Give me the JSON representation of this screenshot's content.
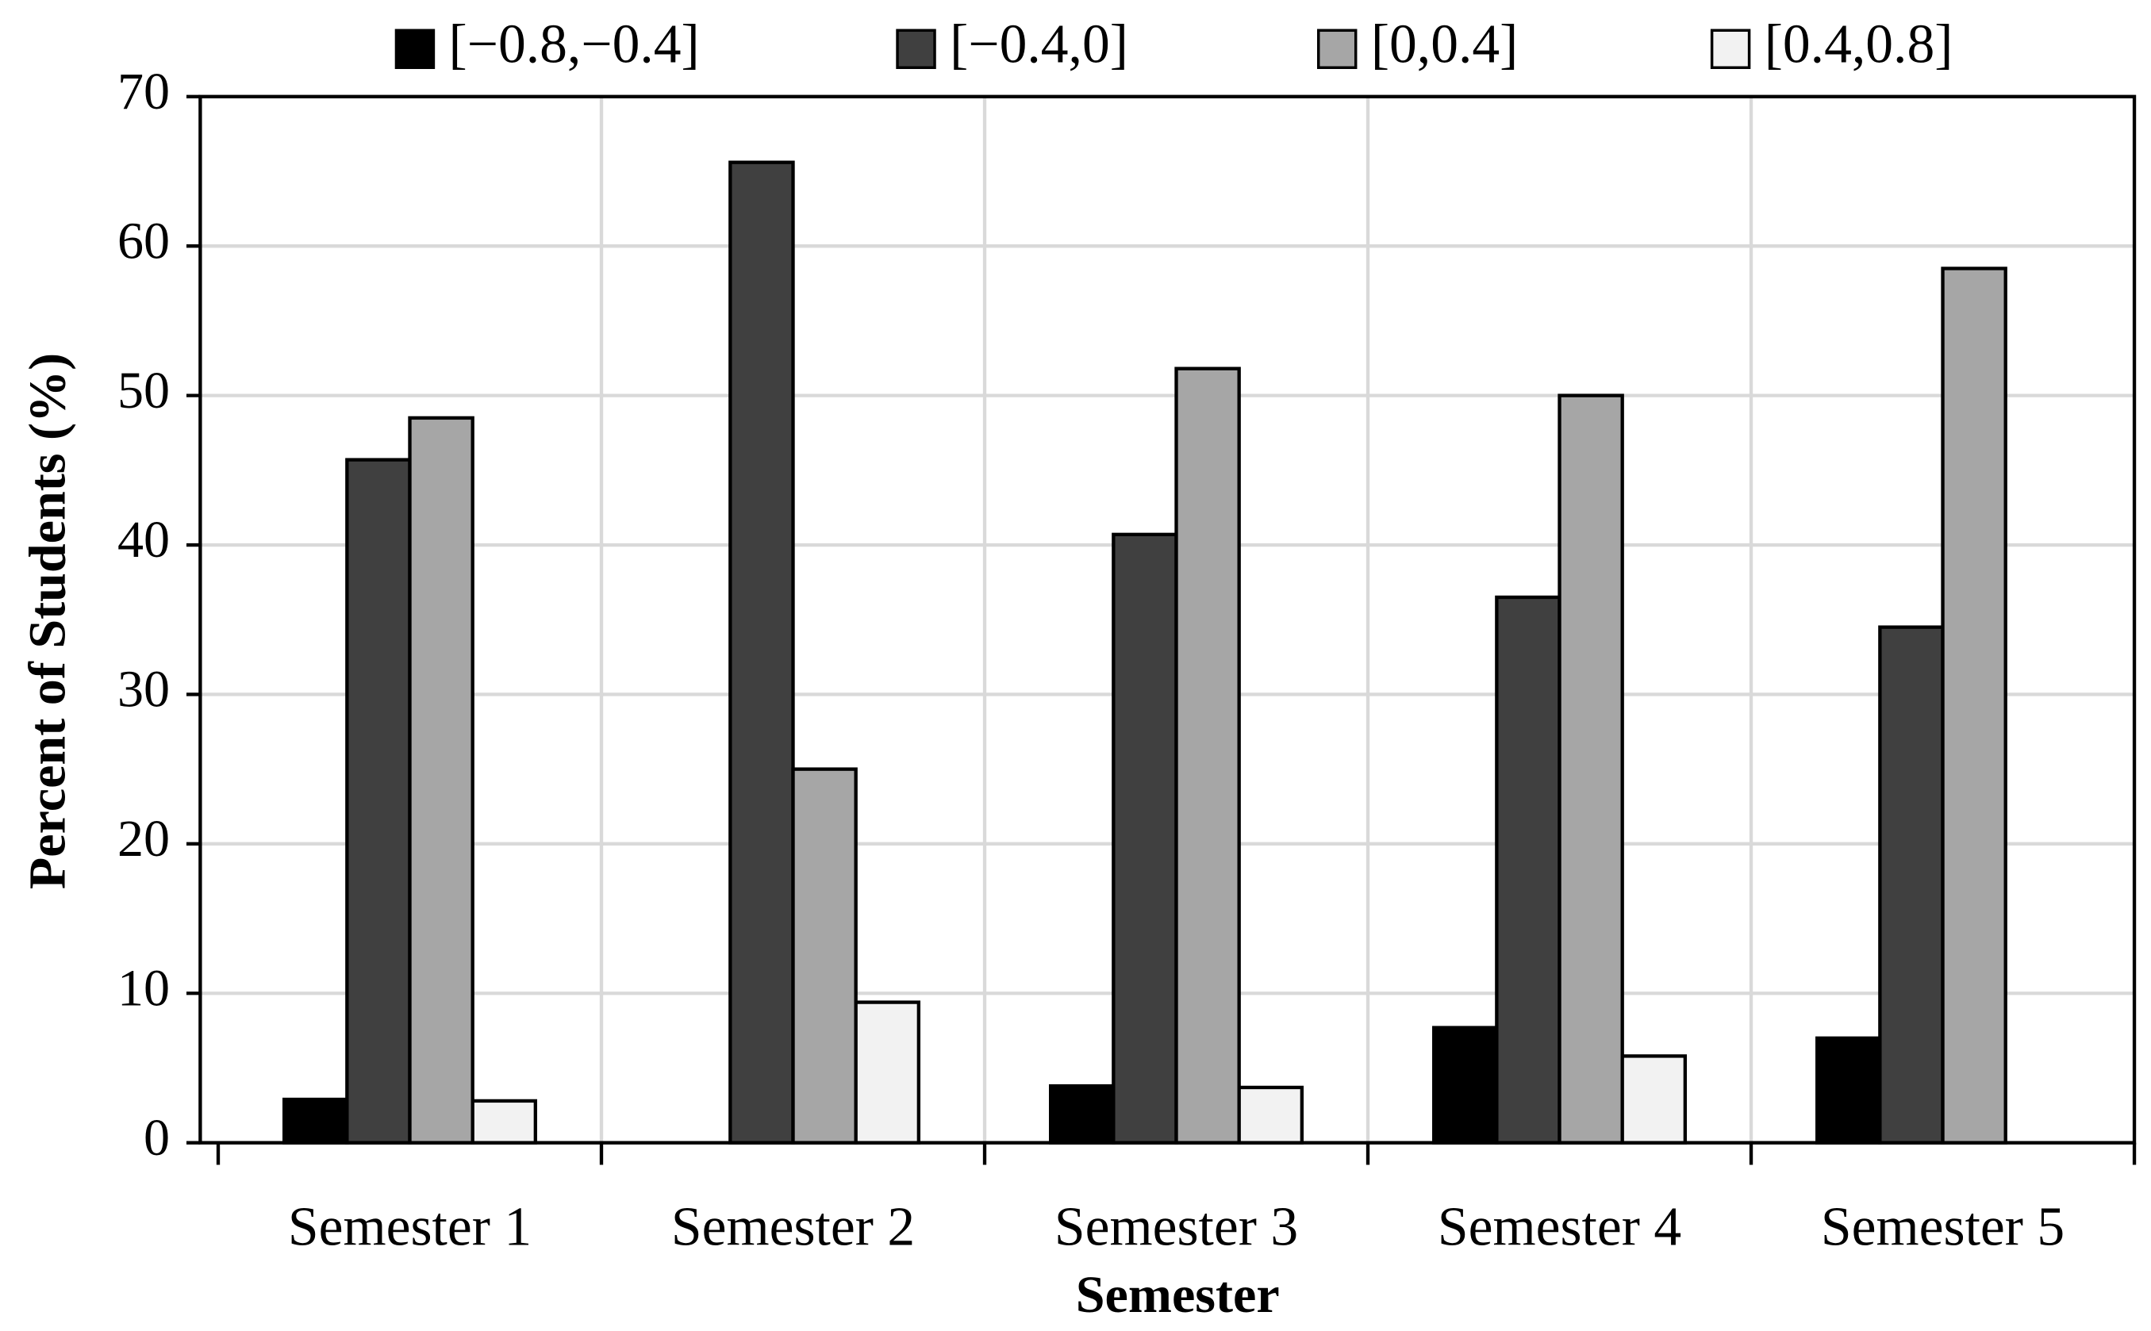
{
  "chart_data": {
    "type": "bar",
    "categories": [
      "Semester 1",
      "Semester 2",
      "Semester 3",
      "Semester 4",
      "Semester 5"
    ],
    "series": [
      {
        "name": "[−0.8,−0.4]",
        "color": "#000000",
        "values": [
          2.9,
          0,
          3.8,
          7.7,
          7.0
        ]
      },
      {
        "name": "[−0.4,0]",
        "color": "#404040",
        "values": [
          45.7,
          65.6,
          40.7,
          36.5,
          34.5
        ]
      },
      {
        "name": "[0,0.4]",
        "color": "#a6a6a6",
        "values": [
          48.5,
          25.0,
          51.8,
          50.0,
          58.5
        ]
      },
      {
        "name": "[0.4,0.8]",
        "color": "#f2f2f2",
        "values": [
          2.8,
          9.4,
          3.7,
          5.8,
          0
        ]
      }
    ],
    "xlabel": "Semester",
    "ylabel": "Percent of Students (%)",
    "ylim": [
      0,
      70
    ],
    "yticks": [
      0,
      10,
      20,
      30,
      40,
      50,
      60,
      70
    ],
    "grid": true,
    "legend": "top"
  }
}
